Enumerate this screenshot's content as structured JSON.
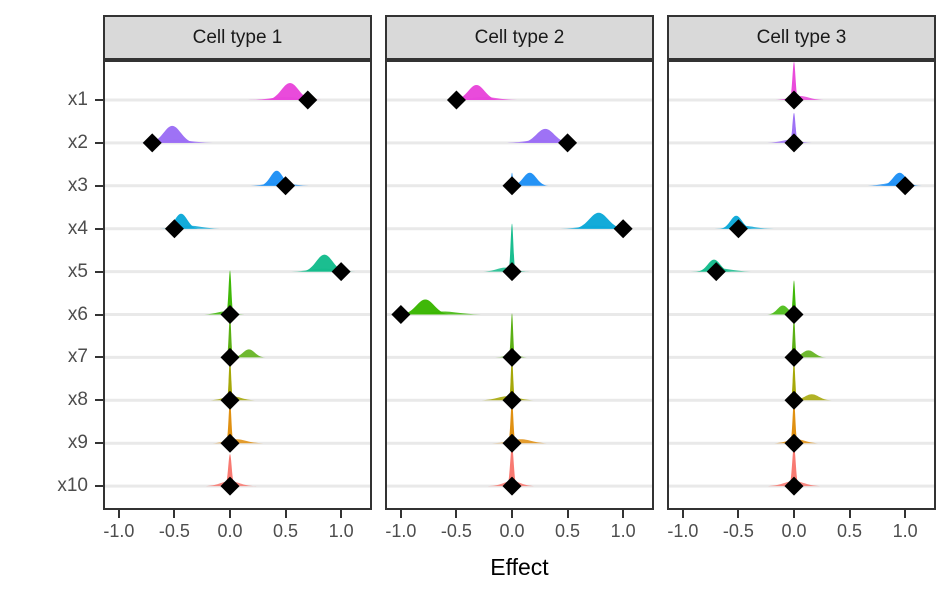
{
  "chart_data": {
    "type": "area",
    "subtype": "faceted-ridgeline-densities-with-point-estimates",
    "xlabel": "Effect",
    "x_ticks": [
      -1.0,
      -0.5,
      0.0,
      0.5,
      1.0
    ],
    "x_tick_labels": [
      "-1.0",
      "-0.5",
      "0.0",
      "0.5",
      "1.0"
    ],
    "xlim": [
      -1.125,
      1.26
    ],
    "grid": "horizontal-only",
    "y_categories": [
      "x1",
      "x2",
      "x3",
      "x4",
      "x5",
      "x6",
      "x7",
      "x8",
      "x9",
      "x10"
    ],
    "colors": {
      "x1": "#E845DA",
      "x2": "#9B6DF5",
      "x3": "#1E90F5",
      "x4": "#0CA8D8",
      "x5": "#14BC8C",
      "x6": "#39B600",
      "x7": "#56AD0C",
      "x8": "#A3A500",
      "x9": "#DF8C09",
      "x10": "#F8766D"
    },
    "style": {
      "strip_bg": "#D9D9D9",
      "panel_border": "#333333",
      "gridline": "#E9E9E9",
      "axis_text": "#4D4D4D",
      "estimate_marker": "#000000",
      "marker_shape": "diamond"
    },
    "density_format": "[center, halfwidth, peak_height_px]",
    "facets": [
      {
        "label": "Cell type 1",
        "rows": [
          {
            "var": "x1",
            "estimate": 0.7,
            "density": [
              [
                0.54,
                0.22,
                17
              ],
              [
                0.5,
                0.36,
                3
              ]
            ]
          },
          {
            "var": "x2",
            "estimate": -0.7,
            "density": [
              [
                -0.52,
                0.22,
                17
              ],
              [
                -0.48,
                0.36,
                3
              ]
            ]
          },
          {
            "var": "x3",
            "estimate": 0.5,
            "density": [
              [
                0.42,
                0.16,
                15
              ],
              [
                0.44,
                0.3,
                3
              ]
            ]
          },
          {
            "var": "x4",
            "estimate": -0.5,
            "density": [
              [
                -0.44,
                0.16,
                15
              ],
              [
                -0.36,
                0.3,
                3
              ]
            ]
          },
          {
            "var": "x5",
            "estimate": 1.0,
            "density": [
              [
                0.85,
                0.21,
                17
              ],
              [
                0.84,
                0.32,
                3
              ]
            ]
          },
          {
            "var": "x6",
            "estimate": 0.0,
            "density": [
              [
                0.0,
                0.035,
                44
              ],
              [
                -0.05,
                0.2,
                3
              ]
            ]
          },
          {
            "var": "x7",
            "estimate": 0.0,
            "density": [
              [
                0.0,
                0.03,
                42
              ],
              [
                0.17,
                0.15,
                8
              ]
            ]
          },
          {
            "var": "x8",
            "estimate": 0.0,
            "density": [
              [
                0.0,
                0.03,
                42
              ],
              [
                0.02,
                0.22,
                4
              ]
            ]
          },
          {
            "var": "x9",
            "estimate": 0.0,
            "density": [
              [
                0.0,
                0.035,
                42
              ],
              [
                0.06,
                0.24,
                4
              ]
            ]
          },
          {
            "var": "x10",
            "estimate": 0.0,
            "density": [
              [
                0.0,
                0.045,
                32
              ],
              [
                0.0,
                0.24,
                5
              ]
            ]
          }
        ]
      },
      {
        "label": "Cell type 2",
        "rows": [
          {
            "var": "x1",
            "estimate": -0.5,
            "density": [
              [
                -0.32,
                0.21,
                15
              ],
              [
                -0.25,
                0.33,
                3
              ]
            ]
          },
          {
            "var": "x2",
            "estimate": 0.5,
            "density": [
              [
                0.3,
                0.23,
                14
              ],
              [
                0.25,
                0.35,
                3
              ]
            ]
          },
          {
            "var": "x3",
            "estimate": 0.0,
            "density": [
              [
                0.16,
                0.17,
                13
              ],
              [
                0.0,
                0.025,
                13
              ]
            ]
          },
          {
            "var": "x4",
            "estimate": 1.0,
            "density": [
              [
                0.78,
                0.24,
                16
              ],
              [
                0.75,
                0.35,
                3
              ]
            ]
          },
          {
            "var": "x5",
            "estimate": 0.0,
            "density": [
              [
                0.0,
                0.035,
                48
              ],
              [
                -0.06,
                0.22,
                4
              ]
            ]
          },
          {
            "var": "x6",
            "estimate": -1.0,
            "density": [
              [
                -0.78,
                0.23,
                15
              ],
              [
                -0.62,
                0.38,
                3
              ]
            ]
          },
          {
            "var": "x7",
            "estimate": 0.0,
            "density": [
              [
                0.0,
                0.03,
                44
              ],
              [
                0.0,
                0.15,
                3
              ]
            ]
          },
          {
            "var": "x8",
            "estimate": 0.0,
            "density": [
              [
                0.0,
                0.03,
                42
              ],
              [
                -0.04,
                0.26,
                4
              ]
            ]
          },
          {
            "var": "x9",
            "estimate": 0.0,
            "density": [
              [
                0.0,
                0.035,
                42
              ],
              [
                0.08,
                0.26,
                4
              ]
            ]
          },
          {
            "var": "x10",
            "estimate": 0.0,
            "density": [
              [
                0.0,
                0.045,
                40
              ],
              [
                0.0,
                0.22,
                5
              ]
            ]
          }
        ]
      },
      {
        "label": "Cell type 3",
        "rows": [
          {
            "var": "x1",
            "estimate": 0.0,
            "density": [
              [
                0.0,
                0.04,
                38
              ],
              [
                0.05,
                0.24,
                4
              ]
            ]
          },
          {
            "var": "x2",
            "estimate": 0.0,
            "density": [
              [
                0.0,
                0.04,
                30
              ],
              [
                -0.04,
                0.22,
                3
              ]
            ]
          },
          {
            "var": "x3",
            "estimate": 1.0,
            "density": [
              [
                0.95,
                0.17,
                13
              ],
              [
                0.9,
                0.28,
                3
              ]
            ]
          },
          {
            "var": "x4",
            "estimate": -0.5,
            "density": [
              [
                -0.52,
                0.15,
                13
              ],
              [
                -0.46,
                0.28,
                3
              ]
            ]
          },
          {
            "var": "x5",
            "estimate": -0.7,
            "density": [
              [
                -0.72,
                0.16,
                12
              ],
              [
                -0.66,
                0.3,
                3
              ]
            ]
          },
          {
            "var": "x6",
            "estimate": 0.0,
            "density": [
              [
                0.0,
                0.03,
                34
              ],
              [
                -0.1,
                0.14,
                9
              ]
            ]
          },
          {
            "var": "x7",
            "estimate": 0.0,
            "density": [
              [
                0.0,
                0.03,
                40
              ],
              [
                0.13,
                0.16,
                7
              ]
            ]
          },
          {
            "var": "x8",
            "estimate": 0.0,
            "density": [
              [
                0.0,
                0.03,
                40
              ],
              [
                0.16,
                0.18,
                6
              ]
            ]
          },
          {
            "var": "x9",
            "estimate": 0.0,
            "density": [
              [
                0.0,
                0.035,
                42
              ],
              [
                0.02,
                0.22,
                4
              ]
            ]
          },
          {
            "var": "x10",
            "estimate": 0.0,
            "density": [
              [
                0.0,
                0.045,
                40
              ],
              [
                0.0,
                0.26,
                5
              ]
            ]
          }
        ]
      }
    ]
  }
}
